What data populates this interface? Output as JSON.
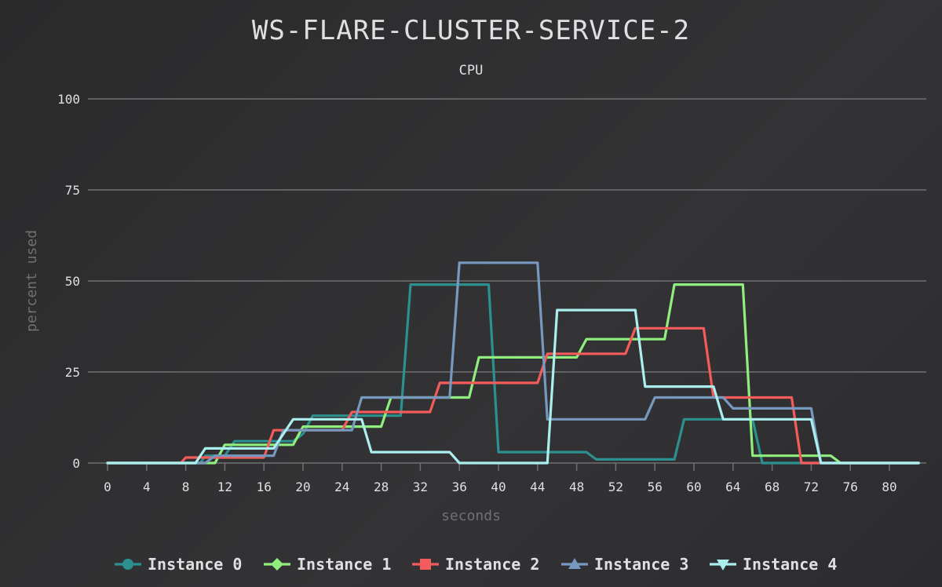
{
  "chart_data": {
    "type": "line",
    "title": "WS-FLARE-CLUSTER-SERVICE-2",
    "subtitle": "CPU",
    "xlabel": "seconds",
    "ylabel": "percent used",
    "xlim": [
      0,
      83
    ],
    "ylim": [
      0,
      100
    ],
    "x_ticks": [
      0,
      4,
      8,
      12,
      16,
      20,
      24,
      28,
      32,
      36,
      40,
      44,
      48,
      52,
      56,
      60,
      64,
      68,
      72,
      76,
      80
    ],
    "y_ticks": [
      0,
      25,
      50,
      75,
      100
    ],
    "grid": "horizontal",
    "legend_position": "bottom",
    "series": [
      {
        "name": "Instance 0",
        "color": "#2b908f",
        "marker": "circle",
        "points": [
          [
            0,
            0
          ],
          [
            9.5,
            0
          ],
          [
            10,
            2
          ],
          [
            12,
            2
          ],
          [
            13,
            6
          ],
          [
            16,
            6
          ],
          [
            17,
            6
          ],
          [
            19,
            6
          ],
          [
            20,
            8
          ],
          [
            21,
            13
          ],
          [
            30,
            13
          ],
          [
            31,
            49
          ],
          [
            39,
            49
          ],
          [
            40,
            3
          ],
          [
            49,
            3
          ],
          [
            50,
            1
          ],
          [
            58,
            1
          ],
          [
            59,
            12
          ],
          [
            66,
            12
          ],
          [
            67,
            0
          ],
          [
            83,
            0
          ]
        ]
      },
      {
        "name": "Instance 1",
        "color": "#90ee7e",
        "marker": "diamond",
        "points": [
          [
            0,
            0
          ],
          [
            11,
            0
          ],
          [
            12,
            5
          ],
          [
            19,
            5
          ],
          [
            20,
            10
          ],
          [
            28,
            10
          ],
          [
            29,
            18
          ],
          [
            37,
            18
          ],
          [
            38,
            29
          ],
          [
            48,
            29
          ],
          [
            49,
            34
          ],
          [
            57,
            34
          ],
          [
            58,
            49
          ],
          [
            65,
            49
          ],
          [
            66,
            2
          ],
          [
            74,
            2
          ],
          [
            75,
            0
          ],
          [
            83,
            0
          ]
        ]
      },
      {
        "name": "Instance 2",
        "color": "#f45b5b",
        "marker": "square",
        "points": [
          [
            0,
            0
          ],
          [
            7.5,
            0
          ],
          [
            8,
            1.5
          ],
          [
            16,
            1.5
          ],
          [
            17,
            9
          ],
          [
            24,
            9
          ],
          [
            25,
            14
          ],
          [
            33,
            14
          ],
          [
            34,
            22
          ],
          [
            44,
            22
          ],
          [
            45,
            30
          ],
          [
            53,
            30
          ],
          [
            54,
            37
          ],
          [
            61,
            37
          ],
          [
            62,
            18
          ],
          [
            70,
            18
          ],
          [
            71,
            0
          ],
          [
            83,
            0
          ]
        ]
      },
      {
        "name": "Instance 3",
        "color": "#7798bf",
        "marker": "triangle",
        "points": [
          [
            0,
            0
          ],
          [
            10,
            0
          ],
          [
            11,
            2
          ],
          [
            17,
            2
          ],
          [
            18,
            9
          ],
          [
            25,
            9
          ],
          [
            26,
            18
          ],
          [
            35,
            18
          ],
          [
            36,
            55
          ],
          [
            44,
            55
          ],
          [
            45,
            12
          ],
          [
            55,
            12
          ],
          [
            56,
            18
          ],
          [
            63,
            18
          ],
          [
            64,
            15
          ],
          [
            72,
            15
          ],
          [
            73,
            0
          ],
          [
            83,
            0
          ]
        ]
      },
      {
        "name": "Instance 4",
        "color": "#aaeeee",
        "marker": "triangle-down",
        "points": [
          [
            0,
            0
          ],
          [
            9,
            0
          ],
          [
            10,
            4
          ],
          [
            17,
            4
          ],
          [
            19,
            12
          ],
          [
            26,
            12
          ],
          [
            27,
            3
          ],
          [
            35,
            3
          ],
          [
            36,
            0
          ],
          [
            45,
            0
          ],
          [
            46,
            42
          ],
          [
            54,
            42
          ],
          [
            55,
            21
          ],
          [
            62,
            21
          ],
          [
            63,
            12
          ],
          [
            72,
            12
          ],
          [
            73,
            0
          ],
          [
            83,
            0
          ]
        ]
      }
    ]
  }
}
